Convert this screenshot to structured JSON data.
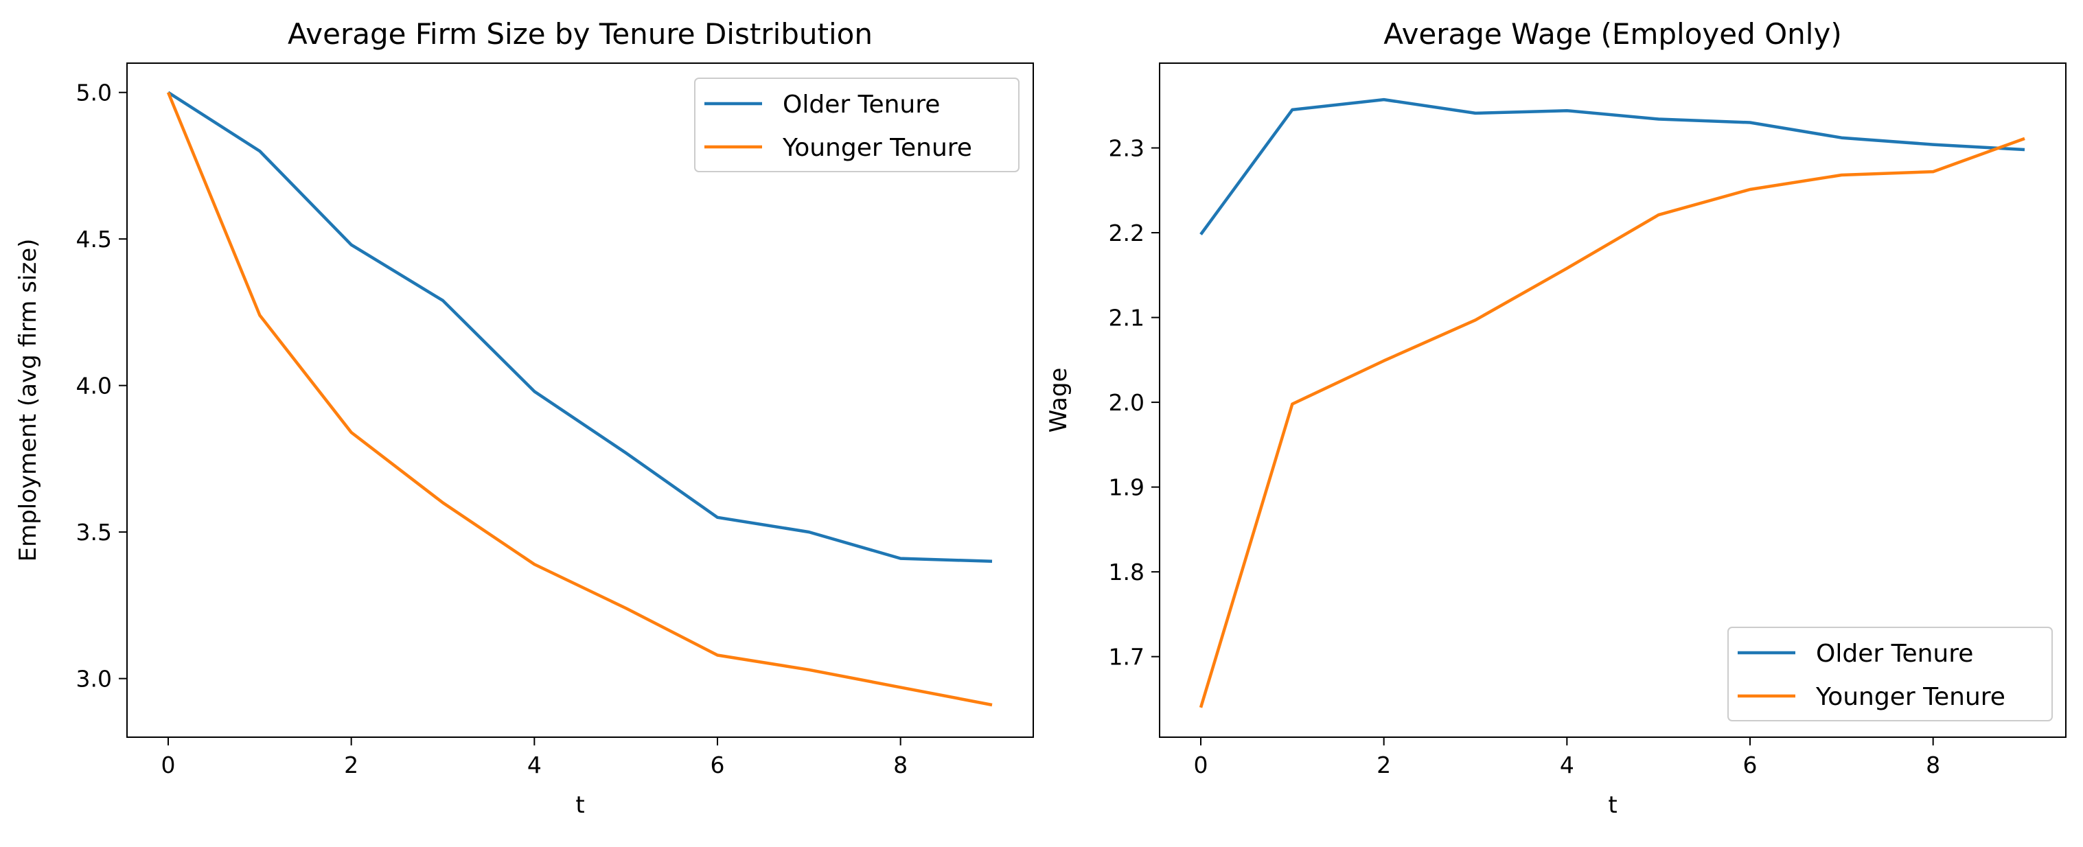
{
  "chart_data": [
    {
      "type": "line",
      "title": "Average Firm Size by Tenure Distribution",
      "xlabel": "t",
      "ylabel": "Employment (avg firm size)",
      "xlim": [
        -0.45,
        9.45
      ],
      "ylim": [
        2.8,
        5.1
      ],
      "xticks": [
        0,
        2,
        4,
        6,
        8
      ],
      "yticks": [
        3.0,
        3.5,
        4.0,
        4.5,
        5.0
      ],
      "x": [
        0,
        1,
        2,
        3,
        4,
        5,
        6,
        7,
        8,
        9
      ],
      "legend_position": "top-right",
      "series": [
        {
          "name": "Older Tenure",
          "color": "#1f77b4",
          "values": [
            5.0,
            4.8,
            4.48,
            4.29,
            3.98,
            3.77,
            3.55,
            3.5,
            3.41,
            3.4
          ]
        },
        {
          "name": "Younger Tenure",
          "color": "#ff7f0e",
          "values": [
            5.0,
            4.24,
            3.84,
            3.6,
            3.39,
            3.24,
            3.08,
            3.03,
            2.97,
            2.91
          ]
        }
      ]
    },
    {
      "type": "line",
      "title": "Average Wage (Employed Only)",
      "xlabel": "t",
      "ylabel": "Wage",
      "xlim": [
        -0.45,
        9.45
      ],
      "ylim": [
        1.605,
        2.4
      ],
      "xticks": [
        0,
        2,
        4,
        6,
        8
      ],
      "yticks": [
        1.7,
        1.8,
        1.9,
        2.0,
        2.1,
        2.2,
        2.3
      ],
      "x": [
        0,
        1,
        2,
        3,
        4,
        5,
        6,
        7,
        8,
        9
      ],
      "legend_position": "bottom-right",
      "series": [
        {
          "name": "Older Tenure",
          "color": "#1f77b4",
          "values": [
            2.198,
            2.345,
            2.357,
            2.341,
            2.344,
            2.334,
            2.33,
            2.312,
            2.304,
            2.298
          ]
        },
        {
          "name": "Younger Tenure",
          "color": "#ff7f0e",
          "values": [
            1.64,
            1.998,
            2.049,
            2.097,
            2.158,
            2.221,
            2.251,
            2.268,
            2.272,
            2.311
          ]
        }
      ]
    }
  ]
}
